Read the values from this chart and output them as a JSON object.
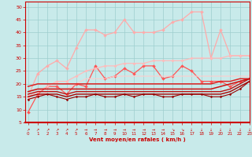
{
  "title": "",
  "xlabel": "Vent moyen/en rafales ( km/h )",
  "ylabel": "",
  "background_color": "#c8eaea",
  "grid_color": "#9ecece",
  "x": [
    0,
    1,
    2,
    3,
    4,
    5,
    6,
    7,
    8,
    9,
    10,
    11,
    12,
    13,
    14,
    15,
    16,
    17,
    18,
    19,
    20,
    21,
    22,
    23
  ],
  "ylim": [
    5,
    52
  ],
  "xlim": [
    -0.3,
    23
  ],
  "yticks": [
    5,
    10,
    15,
    20,
    25,
    30,
    35,
    40,
    45,
    50
  ],
  "xticks": [
    0,
    1,
    2,
    3,
    4,
    5,
    6,
    7,
    8,
    9,
    10,
    11,
    12,
    13,
    14,
    15,
    16,
    17,
    18,
    19,
    20,
    21,
    22,
    23
  ],
  "series": [
    {
      "name": "line_zigzag_bright",
      "y": [
        9,
        16,
        19,
        19,
        16,
        20,
        19,
        27,
        22,
        23,
        26,
        24,
        27,
        27,
        22,
        23,
        27,
        25,
        21,
        21,
        21,
        19,
        21,
        22
      ],
      "color": "#ff5555",
      "lw": 0.9,
      "marker": "D",
      "ms": 2.0
    },
    {
      "name": "line_high_rafales",
      "y": [
        15,
        24,
        27,
        29,
        26,
        34,
        41,
        41,
        39,
        40,
        45,
        40,
        40,
        40,
        41,
        44,
        45,
        48,
        48,
        30,
        41,
        31,
        31,
        31
      ],
      "color": "#ffaaaa",
      "lw": 0.9,
      "marker": "D",
      "ms": 2.0
    },
    {
      "name": "trend_upper_light",
      "y": [
        15,
        17,
        19,
        21,
        21,
        23,
        25,
        26,
        27,
        27,
        28,
        28,
        28,
        29,
        29,
        29,
        29,
        30,
        30,
        30,
        30,
        31,
        31,
        31
      ],
      "color": "#ffbbbb",
      "lw": 0.9,
      "marker": "D",
      "ms": 1.8
    },
    {
      "name": "trend_mid_light",
      "y": [
        14,
        15,
        17,
        18,
        18,
        20,
        22,
        22,
        22,
        23,
        23,
        23,
        23,
        23,
        23,
        23,
        23,
        23,
        23,
        23,
        23,
        23,
        23,
        23
      ],
      "color": "#ffcccc",
      "lw": 0.8,
      "marker": null,
      "ms": 0
    },
    {
      "name": "solid_dark_upper",
      "y": [
        19,
        20,
        20,
        20,
        20,
        20,
        20,
        20,
        20,
        20,
        20,
        20,
        20,
        20,
        20,
        20,
        20,
        20,
        20,
        20,
        21,
        21,
        22,
        22
      ],
      "color": "#dd2222",
      "lw": 1.1,
      "marker": null,
      "ms": 0
    },
    {
      "name": "solid_dark_mid1",
      "y": [
        17,
        18,
        18,
        18,
        18,
        18,
        18,
        18,
        18,
        18,
        18,
        18,
        18,
        18,
        18,
        18,
        18,
        18,
        18,
        18,
        19,
        20,
        21,
        22
      ],
      "color": "#cc1111",
      "lw": 1.1,
      "marker": null,
      "ms": 0
    },
    {
      "name": "solid_dark_mid2",
      "y": [
        16,
        17,
        17,
        17,
        16,
        17,
        17,
        17,
        17,
        17,
        17,
        17,
        17,
        17,
        17,
        17,
        17,
        17,
        17,
        17,
        17,
        18,
        20,
        22
      ],
      "color": "#bb1111",
      "lw": 1.0,
      "marker": null,
      "ms": 0
    },
    {
      "name": "solid_dark_low",
      "y": [
        15,
        16,
        16,
        16,
        15,
        16,
        16,
        16,
        16,
        16,
        16,
        16,
        16,
        16,
        16,
        16,
        16,
        16,
        16,
        16,
        16,
        17,
        19,
        21
      ],
      "color": "#aa0000",
      "lw": 1.0,
      "marker": null,
      "ms": 0
    },
    {
      "name": "dip_line_lowest",
      "y": [
        14,
        15,
        16,
        15,
        14,
        15,
        15,
        16,
        15,
        15,
        16,
        15,
        16,
        16,
        15,
        15,
        16,
        16,
        16,
        15,
        15,
        16,
        18,
        21
      ],
      "color": "#990000",
      "lw": 0.8,
      "marker": "D",
      "ms": 1.5
    }
  ],
  "arrows": [
    "↗",
    "↗",
    "↗",
    "↗",
    "↗",
    "↗",
    "→",
    "→",
    "→",
    "→",
    "→",
    "→",
    "→",
    "→",
    "→",
    "↘",
    "↘",
    "↓",
    "↓",
    "↓",
    "↓",
    "↓",
    "↓",
    "↓"
  ]
}
